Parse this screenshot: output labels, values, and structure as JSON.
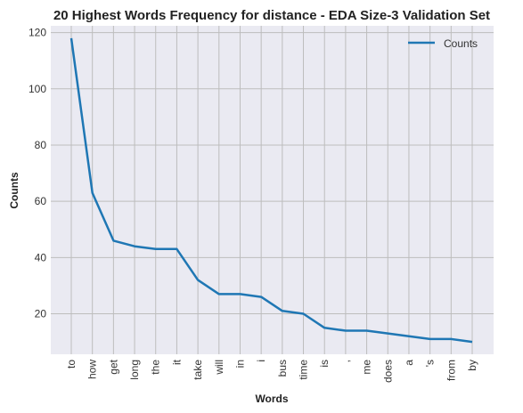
{
  "chart_data": {
    "type": "line",
    "title": "20 Highest Words Frequency for distance - EDA Size-3 Validation Set",
    "xlabel": "Words",
    "ylabel": "Counts",
    "categories": [
      "to",
      "how",
      "get",
      "long",
      "the",
      "it",
      "take",
      "will",
      "in",
      "i",
      "bus",
      "time",
      "is",
      ",",
      "me",
      "does",
      "a",
      "'s",
      "from",
      "by"
    ],
    "series": [
      {
        "name": "Counts",
        "values": [
          118,
          63,
          46,
          44,
          43,
          43,
          32,
          27,
          27,
          26,
          21,
          20,
          15,
          14,
          14,
          13,
          12,
          11,
          11,
          10
        ]
      }
    ],
    "ylim": [
      5.6,
      122.4
    ],
    "yticks": [
      20,
      40,
      60,
      80,
      100,
      120
    ],
    "grid": true,
    "legend_position": "top-right",
    "colors": {
      "line": "#1f77b4",
      "plot_background": "#eaeaf2",
      "grid": "#bdbdbd"
    }
  }
}
